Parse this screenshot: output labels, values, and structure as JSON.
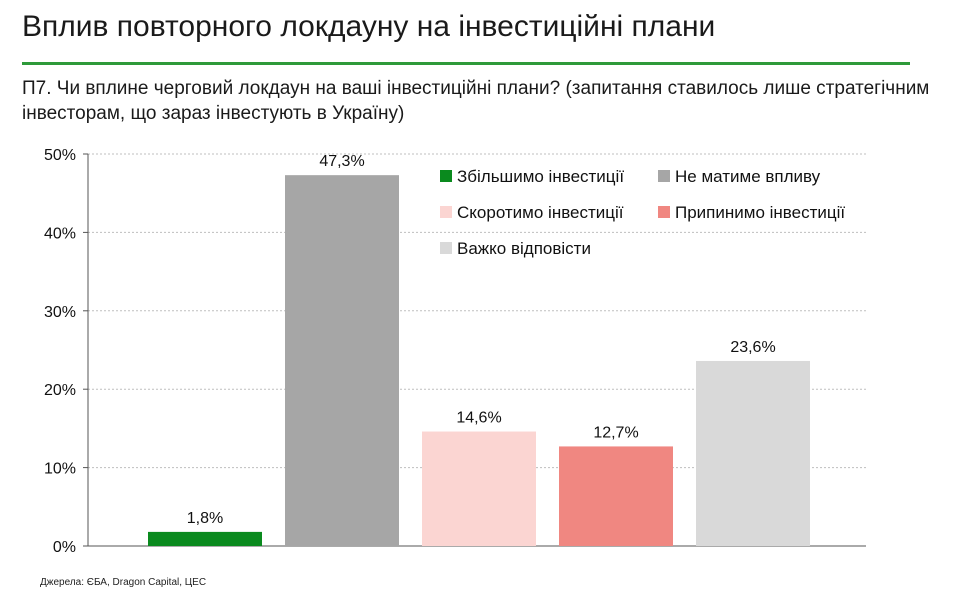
{
  "page": {
    "title": "Вплив повторного локдауну на інвестиційні плани",
    "question": "П7. Чи вплине черговий локдаун на ваші інвестиційні плани? (запитання ставилось лише стратегічним інвесторам, що зараз інвестують в Україну)",
    "source": "Джерела: ЄБА, Dragon Capital, ЦЕС",
    "rule_color": "#2e9a3a"
  },
  "chart_data": {
    "type": "bar",
    "categories": [
      "Збільшимо інвестиції",
      "Не матиме впливу",
      "Скоротимо інвестиції",
      "Припинимо інвестиції",
      "Важко відповісти"
    ],
    "values": [
      1.8,
      47.3,
      14.6,
      12.7,
      23.6
    ],
    "value_labels": [
      "1,8%",
      "47,3%",
      "14,6%",
      "12,7%",
      "23,6%"
    ],
    "colors": [
      "#0a8a1e",
      "#a6a6a6",
      "#fbd5d2",
      "#f08781",
      "#d9d9d9"
    ],
    "ylim": [
      0,
      50
    ],
    "yticks": [
      0,
      10,
      20,
      30,
      40,
      50
    ],
    "ytick_labels": [
      "0%",
      "10%",
      "20%",
      "30%",
      "40%",
      "50%"
    ],
    "grid": true,
    "legend_position": "top-right",
    "legend": [
      {
        "label": "Збільшимо інвестиції",
        "color": "#0a8a1e"
      },
      {
        "label": "Не матиме впливу",
        "color": "#a6a6a6"
      },
      {
        "label": "Скоротимо інвестиції",
        "color": "#fbd5d2"
      },
      {
        "label": "Припинимо інвестиції",
        "color": "#f08781"
      },
      {
        "label": "Важко відповісти",
        "color": "#d9d9d9"
      }
    ]
  }
}
